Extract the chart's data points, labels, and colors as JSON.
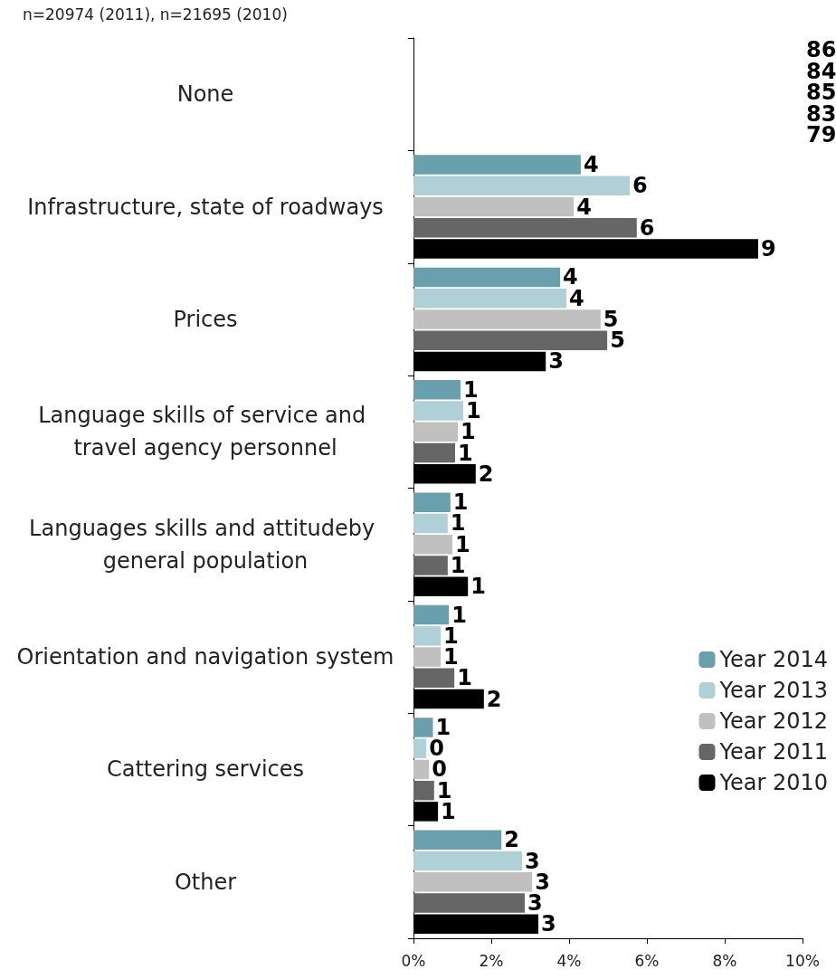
{
  "chart_data": {
    "type": "bar",
    "orientation": "horizontal",
    "subtitle": "n=20974 (2011), n=21695 (2010)",
    "categories": [
      "None",
      "Infrastructure, state of roadways",
      "Prices",
      "Language skills of service and travel agency personnel",
      "Languages skills and attitudeby general population",
      "Orientation and navigation system",
      "Cattering services",
      "Other"
    ],
    "series": [
      {
        "name": "Year 2014",
        "color": "#6a9fae",
        "values": [
          null,
          4.3,
          3.77,
          1.21,
          0.95,
          0.91,
          0.5,
          2.26
        ],
        "value_labels": [
          "86",
          "4",
          "4",
          "1",
          "1",
          "1",
          "1",
          "2"
        ]
      },
      {
        "name": "Year 2013",
        "color": "#b0d0d8",
        "values": [
          null,
          5.56,
          3.93,
          1.28,
          0.88,
          0.7,
          0.33,
          2.79
        ],
        "value_labels": [
          "84",
          "6",
          "4",
          "1",
          "1",
          "1",
          "0",
          "3"
        ]
      },
      {
        "name": "Year 2012",
        "color": "#c0c0c0",
        "values": [
          null,
          4.12,
          4.81,
          1.14,
          1.0,
          0.7,
          0.4,
          3.05
        ],
        "value_labels": [
          "85",
          "4",
          "5",
          "1",
          "1",
          "1",
          "0",
          "3"
        ]
      },
      {
        "name": "Year 2011",
        "color": "#666666",
        "values": [
          null,
          5.74,
          4.98,
          1.07,
          0.88,
          1.05,
          0.53,
          2.86
        ],
        "value_labels": [
          "83",
          "6",
          "5",
          "1",
          "1",
          "1",
          "1",
          "3"
        ]
      },
      {
        "name": "Year 2010",
        "color": "#000000",
        "values": [
          null,
          8.86,
          3.4,
          1.6,
          1.4,
          1.81,
          0.63,
          3.21
        ],
        "value_labels": [
          "79",
          "9",
          "3",
          "2",
          "1",
          "2",
          "1",
          "3"
        ]
      }
    ],
    "xlim": [
      0,
      10
    ],
    "xticks": [
      {
        "value": 0,
        "label": "0%"
      },
      {
        "value": 2,
        "label": "2%"
      },
      {
        "value": 4,
        "label": "4%"
      },
      {
        "value": 6,
        "label": "6%"
      },
      {
        "value": 8,
        "label": "8%"
      },
      {
        "value": 10,
        "label": "10%"
      }
    ],
    "grid": false,
    "legend": "bottom right"
  }
}
